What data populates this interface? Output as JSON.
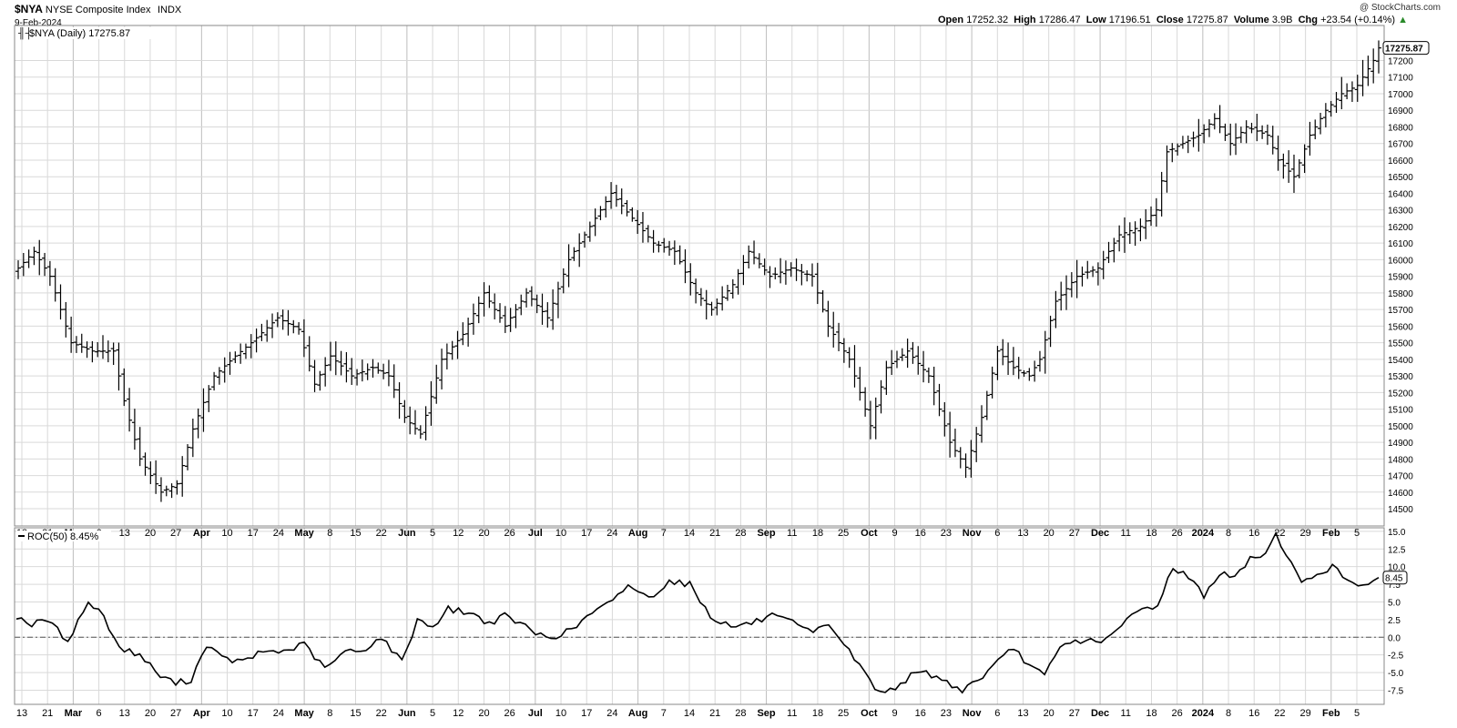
{
  "header": {
    "symbol": "$NYA",
    "name": "NYSE Composite Index",
    "exchange": "INDX",
    "date": "9-Feb-2024",
    "open_label": "Open",
    "open": "17252.32",
    "high_label": "High",
    "high": "17286.47",
    "low_label": "Low",
    "low": "17196.51",
    "close_label": "Close",
    "close": "17275.87",
    "volume_label": "Volume",
    "volume": "3.9B",
    "chg_label": "Chg",
    "chg": "+23.54 (+0.14%)",
    "chg_arrow": "▲",
    "credit": "@ StockCharts.com"
  },
  "colors": {
    "price": "#000000",
    "grid": "#d9d9d9",
    "last_tag_border": "#000000",
    "up": "#2a8a2a"
  },
  "chart_data": [
    {
      "type": "ohlc",
      "legend": "$NYA (Daily) 17275.87",
      "last_value_tag": "17275.87",
      "ylim": [
        14440,
        17400
      ],
      "yticks": [
        14500,
        14600,
        14700,
        14800,
        14900,
        15000,
        15100,
        15200,
        15300,
        15400,
        15500,
        15600,
        15700,
        15800,
        15900,
        16000,
        16100,
        16200,
        16300,
        16400,
        16500,
        16600,
        16700,
        16800,
        16900,
        17000,
        17100,
        17200
      ],
      "xlabels": [
        "13",
        "21",
        "Mar",
        "6",
        "13",
        "20",
        "27",
        "Apr",
        "10",
        "17",
        "24",
        "May",
        "8",
        "15",
        "22",
        "Jun",
        "5",
        "12",
        "20",
        "26",
        "Jul",
        "10",
        "17",
        "24",
        "Aug",
        "7",
        "14",
        "21",
        "28",
        "Sep",
        "11",
        "18",
        "25",
        "Oct",
        "9",
        "16",
        "23",
        "Nov",
        "6",
        "13",
        "20",
        "27",
        "Dec",
        "11",
        "18",
        "26",
        "2024",
        "8",
        "16",
        "22",
        "29",
        "Feb",
        "5"
      ],
      "xlabel_bold": [
        "Mar",
        "Apr",
        "May",
        "Jun",
        "Jul",
        "Aug",
        "Sep",
        "Oct",
        "Nov",
        "Dec",
        "2024",
        "Feb"
      ],
      "anchors": [
        [
          0,
          15950
        ],
        [
          3,
          16050
        ],
        [
          6,
          15900
        ],
        [
          10,
          15500
        ],
        [
          14,
          15450
        ],
        [
          18,
          15450
        ],
        [
          20,
          15150
        ],
        [
          23,
          14800
        ],
        [
          27,
          14600
        ],
        [
          30,
          14650
        ],
        [
          33,
          14980
        ],
        [
          37,
          15300
        ],
        [
          41,
          15420
        ],
        [
          44,
          15500
        ],
        [
          49,
          15650
        ],
        [
          53,
          15580
        ],
        [
          56,
          15250
        ],
        [
          59,
          15420
        ],
        [
          63,
          15300
        ],
        [
          67,
          15350
        ],
        [
          70,
          15300
        ],
        [
          73,
          15050
        ],
        [
          76,
          14950
        ],
        [
          80,
          15400
        ],
        [
          84,
          15550
        ],
        [
          88,
          15800
        ],
        [
          92,
          15600
        ],
        [
          96,
          15800
        ],
        [
          100,
          15650
        ],
        [
          104,
          16000
        ],
        [
          108,
          16200
        ],
        [
          112,
          16400
        ],
        [
          116,
          16250
        ],
        [
          120,
          16100
        ],
        [
          124,
          16050
        ],
        [
          128,
          15800
        ],
        [
          131,
          15700
        ],
        [
          135,
          15850
        ],
        [
          138,
          16050
        ],
        [
          142,
          15900
        ],
        [
          146,
          15950
        ],
        [
          150,
          15900
        ],
        [
          153,
          15600
        ],
        [
          157,
          15400
        ],
        [
          161,
          15000
        ],
        [
          164,
          15350
        ],
        [
          168,
          15450
        ],
        [
          172,
          15300
        ],
        [
          176,
          14900
        ],
        [
          179,
          14750
        ],
        [
          182,
          15050
        ],
        [
          185,
          15450
        ],
        [
          188,
          15350
        ],
        [
          191,
          15300
        ],
        [
          193,
          15400
        ],
        [
          196,
          15750
        ],
        [
          200,
          15900
        ],
        [
          204,
          15950
        ],
        [
          208,
          16150
        ],
        [
          212,
          16200
        ],
        [
          215,
          16300
        ],
        [
          217,
          16650
        ],
        [
          220,
          16700
        ],
        [
          223,
          16750
        ],
        [
          226,
          16850
        ],
        [
          229,
          16700
        ],
        [
          232,
          16800
        ],
        [
          236,
          16750
        ],
        [
          238,
          16600
        ],
        [
          241,
          16500
        ],
        [
          244,
          16750
        ],
        [
          247,
          16900
        ],
        [
          250,
          17000
        ],
        [
          253,
          17050
        ],
        [
          256,
          17200
        ],
        [
          257,
          17275.87
        ]
      ]
    },
    {
      "type": "line",
      "legend": "ROC(50) 8.45%",
      "last_value_tag": "8.45",
      "ylim": [
        -9.5,
        15.5
      ],
      "yticks": [
        -7.5,
        -5.0,
        -2.5,
        0.0,
        2.5,
        5.0,
        7.5,
        10.0,
        12.5,
        15.0
      ],
      "zero_line": true,
      "anchors": [
        [
          0,
          3
        ],
        [
          3,
          1.8
        ],
        [
          6,
          2.5
        ],
        [
          10,
          -0.5
        ],
        [
          14,
          5
        ],
        [
          17,
          3
        ],
        [
          20,
          -1.5
        ],
        [
          24,
          -2.5
        ],
        [
          28,
          -5.5
        ],
        [
          31,
          -6.5
        ],
        [
          34,
          -6
        ],
        [
          37,
          -1
        ],
        [
          40,
          -3
        ],
        [
          44,
          -3.5
        ],
        [
          48,
          -2
        ],
        [
          52,
          -2
        ],
        [
          56,
          -1
        ],
        [
          60,
          -4.5
        ],
        [
          64,
          -2
        ],
        [
          67,
          -2
        ],
        [
          71,
          0
        ],
        [
          75,
          -3.5
        ],
        [
          78,
          2.5
        ],
        [
          81,
          1.5
        ],
        [
          84,
          4
        ],
        [
          88,
          3.5
        ],
        [
          92,
          2
        ],
        [
          95,
          3
        ],
        [
          98,
          2
        ],
        [
          101,
          0.5
        ],
        [
          104,
          0
        ],
        [
          108,
          1
        ],
        [
          112,
          3.5
        ],
        [
          116,
          5
        ],
        [
          119,
          7.5
        ],
        [
          123,
          5.5
        ],
        [
          127,
          8
        ],
        [
          131,
          7.5
        ],
        [
          135,
          3
        ],
        [
          139,
          1.5
        ],
        [
          143,
          2
        ],
        [
          147,
          3
        ],
        [
          151,
          2
        ],
        [
          155,
          0.5
        ],
        [
          158,
          2
        ],
        [
          161,
          -1
        ],
        [
          165,
          -5
        ],
        [
          168,
          -8
        ],
        [
          171,
          -7
        ],
        [
          174,
          -5.5
        ],
        [
          177,
          -5
        ],
        [
          180,
          -6
        ],
        [
          184,
          -7.5
        ],
        [
          188,
          -5.5
        ],
        [
          191,
          -3.5
        ],
        [
          194,
          -1.5
        ],
        [
          197,
          -4
        ],
        [
          200,
          -5.5
        ],
        [
          203,
          -1.5
        ],
        [
          206,
          -0.5
        ],
        [
          210,
          -0.5
        ],
        [
          213,
          0
        ],
        [
          216,
          2.5
        ],
        [
          219,
          4
        ],
        [
          222,
          4.5
        ],
        [
          225,
          10
        ],
        [
          228,
          8.5
        ],
        [
          231,
          6
        ],
        [
          234,
          9
        ],
        [
          237,
          8.5
        ],
        [
          240,
          11
        ],
        [
          243,
          12
        ],
        [
          245,
          14.5
        ],
        [
          247,
          12
        ],
        [
          250,
          7.5
        ],
        [
          253,
          9
        ],
        [
          256,
          10
        ],
        [
          259,
          8
        ],
        [
          262,
          7.5
        ],
        [
          265,
          8.45
        ]
      ]
    }
  ]
}
